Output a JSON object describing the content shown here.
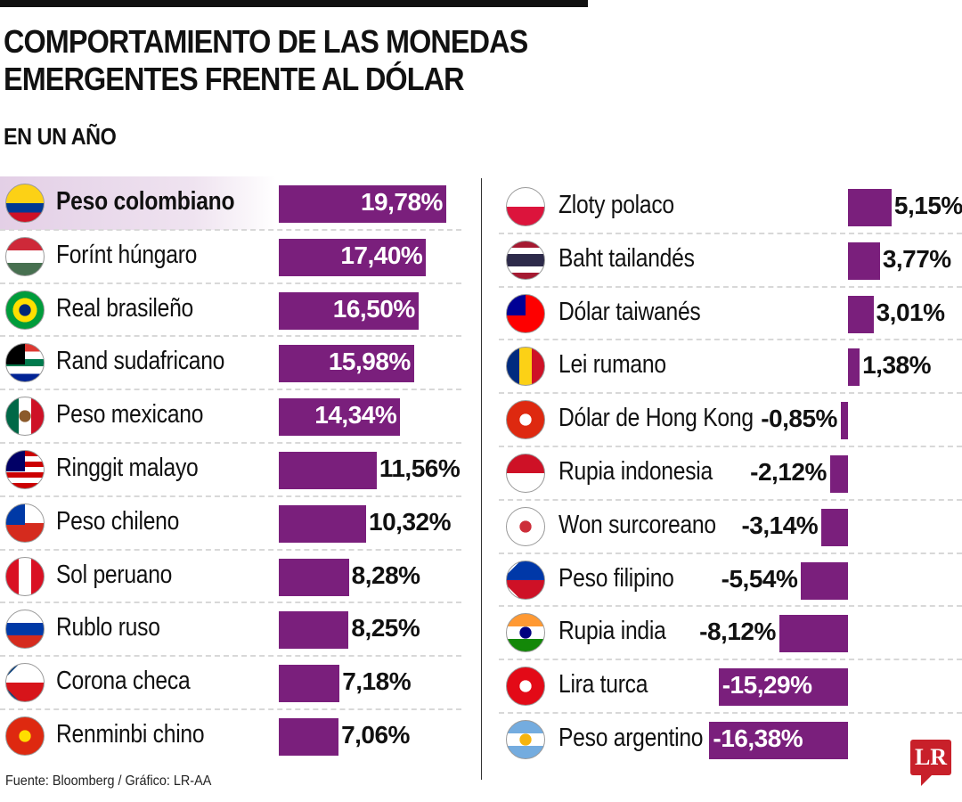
{
  "title_line1": "COMPORTAMIENTO DE LAS MONEDAS",
  "title_line2": "EMERGENTES FRENTE AL DÓLAR",
  "subtitle": "EN UN AÑO",
  "source": "Fuente: Bloomberg / Gráfico: LR-AA",
  "logo": "LR",
  "colors": {
    "bar": "#7a1f7c",
    "highlight": "#e3cfe6",
    "logo": "#c8202a"
  },
  "chart_data": {
    "type": "bar",
    "orientation": "horizontal",
    "unit": "%",
    "columns": [
      {
        "items": [
          {
            "name": "Peso colombiano",
            "value": 19.78,
            "label": "19,78%",
            "highlight": true,
            "flag": {
              "icon": "colombia-flag-icon",
              "dir": "h",
              "stripes": [
                "#fcd116",
                "#fcd116",
                "#003893",
                "#ce1126"
              ]
            }
          },
          {
            "name": "Forínt húngaro",
            "value": 17.4,
            "label": "17,40%",
            "flag": {
              "icon": "hungary-flag-icon",
              "dir": "h",
              "stripes": [
                "#ce2939",
                "#ffffff",
                "#477050"
              ]
            }
          },
          {
            "name": "Real brasileño",
            "value": 16.5,
            "label": "16,50%",
            "flag": {
              "icon": "brazil-flag-icon",
              "dir": "h",
              "stripes": [
                "#009c3b"
              ],
              "center": "#ffdf00",
              "dot": "#002776"
            }
          },
          {
            "name": "Rand sudafricano",
            "value": 15.98,
            "label": "15,98%",
            "flag": {
              "icon": "south-africa-flag-icon",
              "dir": "h",
              "stripes": [
                "#de3831",
                "#ffffff",
                "#007a4d",
                "#ffffff",
                "#002395"
              ],
              "canton": "#000000"
            }
          },
          {
            "name": "Peso mexicano",
            "value": 14.34,
            "label": "14,34%",
            "flag": {
              "icon": "mexico-flag-icon",
              "dir": "v",
              "stripes": [
                "#006847",
                "#ffffff",
                "#ce1126"
              ],
              "dot": "#8b5a2b"
            }
          },
          {
            "name": "Ringgit malayo",
            "value": 11.56,
            "label": "11,56%",
            "flag": {
              "icon": "malaysia-flag-icon",
              "dir": "h",
              "stripes": [
                "#cc0001",
                "#ffffff",
                "#cc0001",
                "#ffffff",
                "#cc0001",
                "#ffffff",
                "#cc0001"
              ],
              "canton": "#010066"
            }
          },
          {
            "name": "Peso chileno",
            "value": 10.32,
            "label": "10,32%",
            "flag": {
              "icon": "chile-flag-icon",
              "dir": "h",
              "stripes": [
                "#ffffff",
                "#d52b1e"
              ],
              "canton": "#0039a6"
            }
          },
          {
            "name": "Sol peruano",
            "value": 8.28,
            "label": "8,28%",
            "flag": {
              "icon": "peru-flag-icon",
              "dir": "v",
              "stripes": [
                "#d91023",
                "#ffffff",
                "#d91023"
              ]
            }
          },
          {
            "name": "Rublo ruso",
            "value": 8.25,
            "label": "8,25%",
            "flag": {
              "icon": "russia-flag-icon",
              "dir": "h",
              "stripes": [
                "#ffffff",
                "#0039a6",
                "#d52b1e"
              ]
            }
          },
          {
            "name": "Corona checa",
            "value": 7.18,
            "label": "7,18%",
            "flag": {
              "icon": "czech-flag-icon",
              "dir": "h",
              "stripes": [
                "#ffffff",
                "#d7141a"
              ],
              "triangle": "#11457e"
            }
          },
          {
            "name": "Renminbi chino",
            "value": 7.06,
            "label": "7,06%",
            "flag": {
              "icon": "china-flag-icon",
              "dir": "h",
              "stripes": [
                "#de2910"
              ],
              "dot": "#ffde00"
            }
          }
        ]
      },
      {
        "items": [
          {
            "name": "Zloty polaco",
            "value": 5.15,
            "label": "5,15%",
            "flag": {
              "icon": "poland-flag-icon",
              "dir": "h",
              "stripes": [
                "#ffffff",
                "#dc143c"
              ]
            }
          },
          {
            "name": "Baht tailandés",
            "value": 3.77,
            "label": "3,77%",
            "flag": {
              "icon": "thailand-flag-icon",
              "dir": "h",
              "stripes": [
                "#a51931",
                "#ffffff",
                "#2d2a4a",
                "#2d2a4a",
                "#ffffff",
                "#a51931"
              ]
            }
          },
          {
            "name": "Dólar taiwanés",
            "value": 3.01,
            "label": "3,01%",
            "flag": {
              "icon": "taiwan-flag-icon",
              "dir": "h",
              "stripes": [
                "#fe0000"
              ],
              "canton": "#000095"
            }
          },
          {
            "name": "Lei rumano",
            "value": 1.38,
            "label": "1,38%",
            "flag": {
              "icon": "romania-flag-icon",
              "dir": "v",
              "stripes": [
                "#002b7f",
                "#fcd116",
                "#ce1126"
              ]
            }
          },
          {
            "name": "Dólar de Hong Kong",
            "value": -0.85,
            "label": "-0,85%",
            "flag": {
              "icon": "hong-kong-flag-icon",
              "dir": "h",
              "stripes": [
                "#de2910"
              ],
              "dot": "#ffffff"
            }
          },
          {
            "name": "Rupia indonesia",
            "value": -2.12,
            "label": "-2,12%",
            "flag": {
              "icon": "indonesia-flag-icon",
              "dir": "h",
              "stripes": [
                "#ce1126",
                "#ffffff"
              ]
            }
          },
          {
            "name": "Won surcoreano",
            "value": -3.14,
            "label": "-3,14%",
            "flag": {
              "icon": "south-korea-flag-icon",
              "dir": "h",
              "stripes": [
                "#ffffff"
              ],
              "dot": "#cd2e3a"
            }
          },
          {
            "name": "Peso filipino",
            "value": -5.54,
            "label": "-5,54%",
            "flag": {
              "icon": "philippines-flag-icon",
              "dir": "h",
              "stripes": [
                "#0038a8",
                "#ce1126"
              ],
              "triangle": "#ffffff"
            }
          },
          {
            "name": "Rupia india",
            "value": -8.12,
            "label": "-8,12%",
            "flag": {
              "icon": "india-flag-icon",
              "dir": "h",
              "stripes": [
                "#ff9933",
                "#ffffff",
                "#138808"
              ],
              "dot": "#000080"
            }
          },
          {
            "name": "Lira turca",
            "value": -15.29,
            "label": "-15,29%",
            "flag": {
              "icon": "turkey-flag-icon",
              "dir": "h",
              "stripes": [
                "#e30a17"
              ],
              "dot": "#ffffff"
            }
          },
          {
            "name": "Peso argentino",
            "value": -16.38,
            "label": "-16,38%",
            "flag": {
              "icon": "argentina-flag-icon",
              "dir": "h",
              "stripes": [
                "#74acdf",
                "#ffffff",
                "#74acdf"
              ],
              "dot": "#f6b40e"
            }
          }
        ]
      }
    ]
  }
}
